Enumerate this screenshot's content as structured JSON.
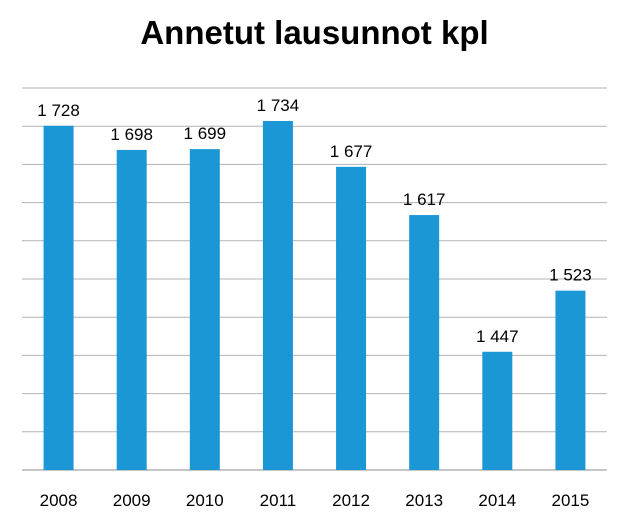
{
  "chart_data": {
    "type": "bar",
    "title": "Annetut lausunnot kpl",
    "xlabel": "",
    "ylabel": "",
    "categories": [
      "2008",
      "2009",
      "2010",
      "2011",
      "2012",
      "2013",
      "2014",
      "2015"
    ],
    "values": [
      1728,
      1698,
      1699,
      1734,
      1677,
      1617,
      1447,
      1523
    ],
    "value_labels": [
      "1 728",
      "1 698",
      "1 699",
      "1 734",
      "1 677",
      "1 617",
      "1 447",
      "1 523"
    ],
    "ylim": [
      1300,
      1775
    ],
    "gridlines": true,
    "legend": "none",
    "colors": {
      "bar": "#1b97d6",
      "grid": "#b3b3b3",
      "axis": "#8c8c8c"
    }
  }
}
